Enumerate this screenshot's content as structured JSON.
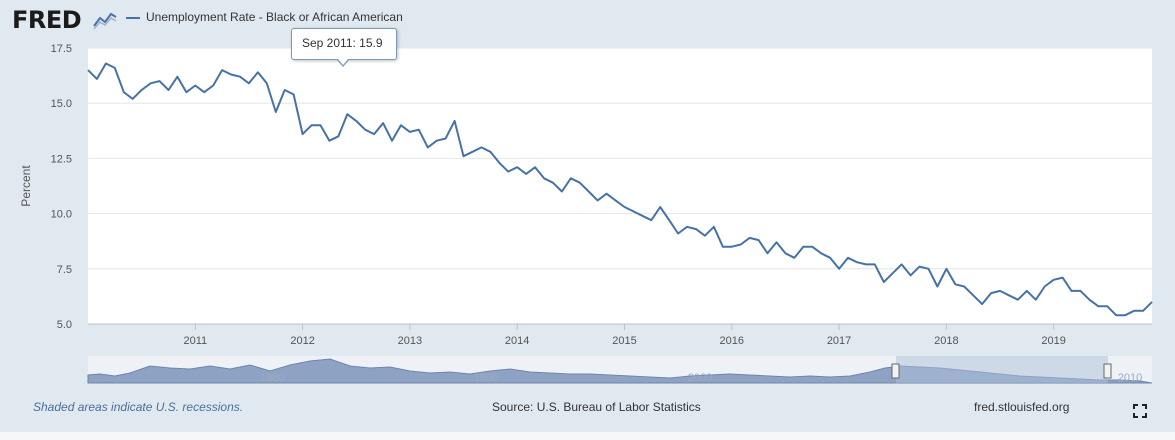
{
  "logo": {
    "text": "FRED"
  },
  "icons": {
    "logo_mark": "fred-chart-mark-icon",
    "fullscreen": "fullscreen-icon"
  },
  "footer": {
    "recessions_note": "Shaded areas indicate U.S. recessions.",
    "source": "Source: U.S. Bureau of Labor Statistics",
    "site": "fred.stlouisfed.org"
  },
  "tooltip": {
    "label": "Sep 2011:",
    "value": "15.9"
  },
  "colors": {
    "series": "#4572a7",
    "plot_bg": "#ffffff",
    "page_bg": "#e1e9f0",
    "grid": "#e6e6e6",
    "navigator": "#8ea3c4"
  },
  "chart_data": {
    "type": "line",
    "title": "",
    "xlabel": "",
    "ylabel": "Percent",
    "ylim": [
      5.0,
      17.5
    ],
    "yticks": [
      "5.0",
      "7.5",
      "10.0",
      "12.5",
      "15.0",
      "17.5"
    ],
    "xticks": [
      "2011",
      "2012",
      "2013",
      "2014",
      "2015",
      "2016",
      "2017",
      "2018",
      "2019"
    ],
    "xrange": [
      "2010-01",
      "2019-12"
    ],
    "grid": true,
    "legend": "top-left",
    "series": [
      {
        "name": "Unemployment Rate - Black or African American",
        "start": "2010-01",
        "frequency": "monthly",
        "values": [
          16.5,
          16.1,
          16.8,
          16.6,
          15.5,
          15.2,
          15.6,
          15.9,
          16.0,
          15.6,
          16.2,
          15.5,
          15.8,
          15.5,
          15.8,
          16.5,
          16.3,
          16.2,
          15.9,
          16.4,
          15.9,
          14.6,
          15.6,
          15.4,
          13.6,
          14.0,
          14.0,
          13.3,
          13.5,
          14.5,
          14.2,
          13.8,
          13.6,
          14.1,
          13.3,
          14.0,
          13.7,
          13.8,
          13.0,
          13.3,
          13.4,
          14.2,
          12.6,
          12.8,
          13.0,
          12.8,
          12.3,
          11.9,
          12.1,
          11.8,
          12.1,
          11.6,
          11.4,
          11.0,
          11.6,
          11.4,
          11.0,
          10.6,
          10.9,
          10.6,
          10.3,
          10.1,
          9.9,
          9.7,
          10.3,
          9.7,
          9.1,
          9.4,
          9.3,
          9.0,
          9.4,
          8.5,
          8.5,
          8.6,
          8.9,
          8.8,
          8.2,
          8.7,
          8.2,
          8.0,
          8.5,
          8.5,
          8.2,
          8.0,
          7.5,
          8.0,
          7.8,
          7.7,
          7.7,
          6.9,
          7.3,
          7.7,
          7.2,
          7.6,
          7.5,
          6.7,
          7.5,
          6.8,
          6.7,
          6.3,
          5.9,
          6.4,
          6.5,
          6.3,
          6.1,
          6.5,
          6.1,
          6.7,
          7.0,
          7.1,
          6.5,
          6.5,
          6.1,
          5.8,
          5.8,
          5.4,
          5.4,
          5.6,
          5.6,
          6.0
        ]
      }
    ],
    "annotations": [
      {
        "label": "Sep 2011:",
        "value": "15.9"
      }
    ],
    "navigator": {
      "labels": [
        "1980",
        "1990",
        "2000",
        "2010"
      ]
    }
  }
}
